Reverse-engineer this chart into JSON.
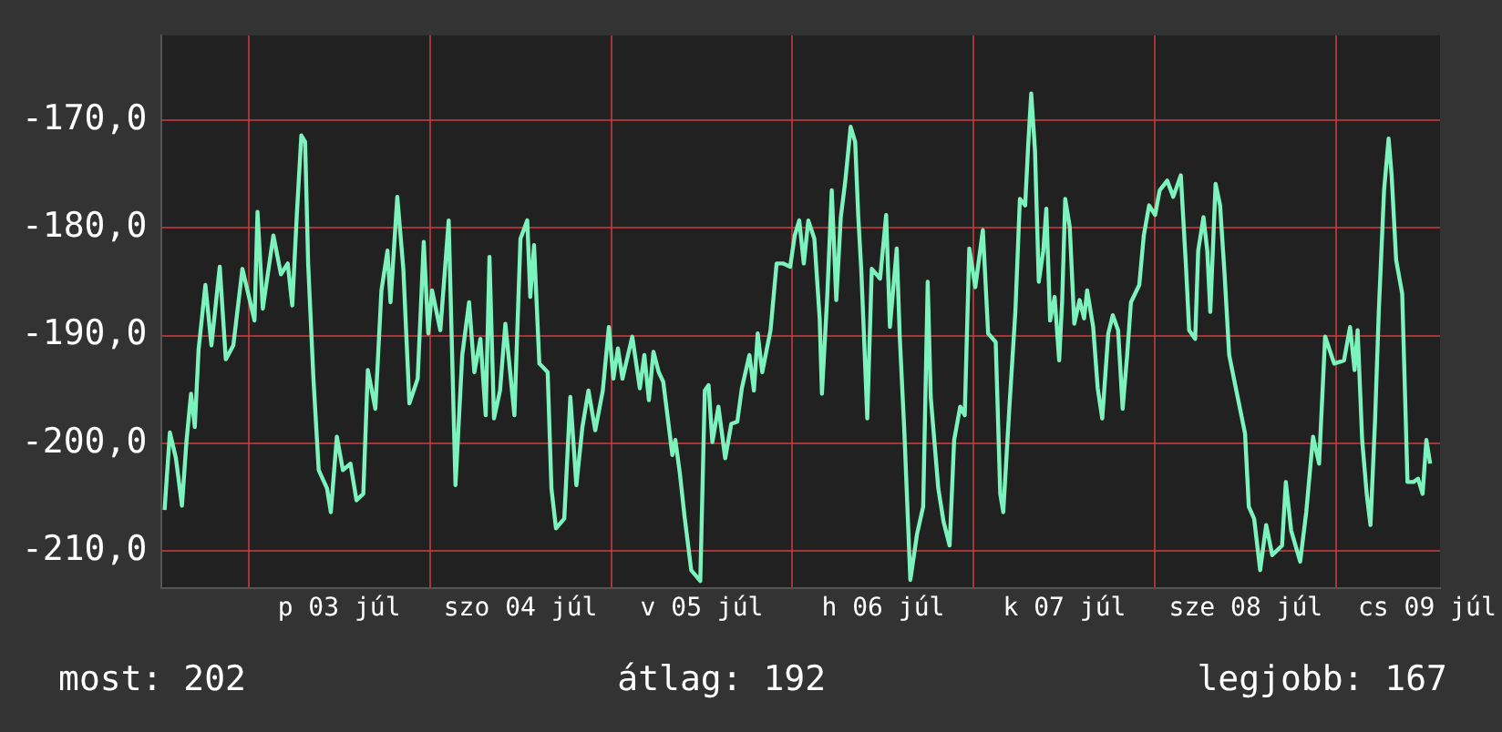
{
  "chart_data": {
    "type": "line",
    "x": [
      "--07-02T12:54",
      "--07-02T13:36",
      "--07-02T14:24",
      "--07-02T15:12",
      "--07-02T15:48",
      "--07-02T16:24",
      "--07-02T16:54",
      "--07-02T17:24",
      "--07-02T18:18",
      "--07-02T19:06",
      "--07-02T20:12",
      "--07-02T21:00",
      "--07-02T22:00",
      "--07-02T23:12",
      "--07-03T00:48",
      "--07-03T01:12",
      "--07-03T01:54",
      "--07-03T03:18",
      "--07-03T04:18",
      "--07-03T05:12",
      "--07-03T05:48",
      "--07-03T06:24",
      "--07-03T07:00",
      "--07-03T07:30",
      "--07-03T07:54",
      "--07-03T08:36",
      "--07-03T09:18",
      "--07-03T10:24",
      "--07-03T10:54",
      "--07-03T11:42",
      "--07-03T12:30",
      "--07-03T13:30",
      "--07-03T14:18",
      "--07-03T15:12",
      "--07-03T15:48",
      "--07-03T16:48",
      "--07-03T17:36",
      "--07-03T18:24",
      "--07-03T18:48",
      "--07-03T19:42",
      "--07-03T20:30",
      "--07-03T21:18",
      "--07-03T22:24",
      "--07-03T23:12",
      "--07-03T23:48",
      "--07-04T00:18",
      "--07-04T01:24",
      "--07-04T02:30",
      "--07-04T03:24",
      "--07-04T04:18",
      "--07-04T05:12",
      "--07-04T05:54",
      "--07-04T06:42",
      "--07-04T07:24",
      "--07-04T07:54",
      "--07-04T08:30",
      "--07-04T09:18",
      "--07-04T10:00",
      "--07-04T11:12",
      "--07-04T12:00",
      "--07-04T12:54",
      "--07-04T13:18",
      "--07-04T13:48",
      "--07-04T14:30",
      "--07-04T15:36",
      "--07-04T16:06",
      "--07-04T16:42",
      "--07-04T17:48",
      "--07-04T18:36",
      "--07-04T19:24",
      "--07-04T20:12",
      "--07-04T21:00",
      "--07-04T21:54",
      "--07-04T22:54",
      "--07-04T23:42",
      "--07-05T00:18",
      "--07-05T00:54",
      "--07-05T01:30",
      "--07-05T02:48",
      "--07-05T03:48",
      "--07-05T04:24",
      "--07-05T05:00",
      "--07-05T05:36",
      "--07-05T06:18",
      "--07-05T06:54",
      "--07-05T07:42",
      "--07-05T08:06",
      "--07-05T08:30",
      "--07-05T09:06",
      "--07-05T09:42",
      "--07-05T10:36",
      "--07-05T11:48",
      "--07-05T12:24",
      "--07-05T12:54",
      "--07-05T13:24",
      "--07-05T14:12",
      "--07-05T15:06",
      "--07-05T15:54",
      "--07-05T16:42",
      "--07-05T17:18",
      "--07-05T18:18",
      "--07-05T18:54",
      "--07-05T19:24",
      "--07-05T20:00",
      "--07-05T21:06",
      "--07-05T21:54",
      "--07-05T22:48",
      "--07-05T23:42",
      "--07-06T00:18",
      "--07-06T00:54",
      "--07-06T01:30",
      "--07-06T02:06",
      "--07-06T02:54",
      "--07-06T03:36",
      "--07-06T03:54",
      "--07-06T04:36",
      "--07-06T05:12",
      "--07-06T05:48",
      "--07-06T06:24",
      "--07-06T07:00",
      "--07-06T07:42",
      "--07-06T08:18",
      "--07-06T08:42",
      "--07-06T09:06",
      "--07-06T09:30",
      "--07-06T09:54",
      "--07-06T10:30",
      "--07-06T11:36",
      "--07-06T12:24",
      "--07-06T12:54",
      "--07-06T13:48",
      "--07-06T14:12",
      "--07-06T14:48",
      "--07-06T15:36",
      "--07-06T16:30",
      "--07-06T17:18",
      "--07-06T17:54",
      "--07-06T18:18",
      "--07-06T19:18",
      "--07-06T20:00",
      "--07-06T20:48",
      "--07-06T21:24",
      "--07-06T22:12",
      "--07-06T22:48",
      "--07-06T23:24",
      "--07-07T00:12",
      "--07-07T01:12",
      "--07-07T01:54",
      "--07-07T02:54",
      "--07-07T03:30",
      "--07-07T03:54",
      "--07-07T04:42",
      "--07-07T05:30",
      "--07-07T06:06",
      "--07-07T06:48",
      "--07-07T07:12",
      "--07-07T07:36",
      "--07-07T08:06",
      "--07-07T08:36",
      "--07-07T09:12",
      "--07-07T09:36",
      "--07-07T10:06",
      "--07-07T10:42",
      "--07-07T11:18",
      "--07-07T11:42",
      "--07-07T12:06",
      "--07-07T12:42",
      "--07-07T13:18",
      "--07-07T14:00",
      "--07-07T14:36",
      "--07-07T15:00",
      "--07-07T15:48",
      "--07-07T16:24",
      "--07-07T17:00",
      "--07-07T17:48",
      "--07-07T18:24",
      "--07-07T19:06",
      "--07-07T19:42",
      "--07-07T20:18",
      "--07-07T20:48",
      "--07-07T21:54",
      "--07-07T22:30",
      "--07-07T23:12",
      "--07-08T00:00",
      "--07-08T00:36",
      "--07-08T01:36",
      "--07-08T02:24",
      "--07-08T03:24",
      "--07-08T04:06",
      "--07-08T04:30",
      "--07-08T05:18",
      "--07-08T05:42",
      "--07-08T06:24",
      "--07-08T06:54",
      "--07-08T07:18",
      "--07-08T08:00",
      "--07-08T08:36",
      "--07-08T09:12",
      "--07-08T09:48",
      "--07-08T10:36",
      "--07-08T11:54",
      "--07-08T12:24",
      "--07-08T13:06",
      "--07-08T13:54",
      "--07-08T14:42",
      "--07-08T15:30",
      "--07-08T16:48",
      "--07-08T17:18",
      "--07-08T18:00",
      "--07-08T19:12",
      "--07-08T20:00",
      "--07-08T20:54",
      "--07-08T21:42",
      "--07-08T22:30",
      "--07-08T23:42",
      "--07-09T01:00",
      "--07-09T01:48",
      "--07-09T02:24",
      "--07-09T02:48",
      "--07-09T03:24",
      "--07-09T04:00",
      "--07-09T04:30",
      "--07-09T05:06",
      "--07-09T05:36",
      "--07-09T06:18",
      "--07-09T06:54",
      "--07-09T07:18",
      "--07-09T07:54",
      "--07-09T08:42",
      "--07-09T09:24",
      "--07-09T10:12",
      "--07-09T10:48",
      "--07-09T11:24",
      "--07-09T11:54",
      "--07-09T12:24"
    ],
    "series": [
      {
        "color": "#7cf3bd",
        "values": [
          -206.2,
          -199.0,
          -201.4,
          -205.8,
          -199.8,
          -195.4,
          -198.5,
          -191.3,
          -185.3,
          -190.9,
          -183.6,
          -192.2,
          -190.9,
          -183.8,
          -188.6,
          -178.5,
          -187.5,
          -180.7,
          -184.3,
          -183.3,
          -187.2,
          -178.8,
          -171.4,
          -172.0,
          -183.3,
          -194.0,
          -202.5,
          -204.2,
          -206.4,
          -199.4,
          -202.5,
          -201.9,
          -205.3,
          -204.7,
          -193.2,
          -196.8,
          -185.8,
          -182.1,
          -186.9,
          -177.1,
          -183.8,
          -196.3,
          -194.0,
          -181.3,
          -189.8,
          -185.8,
          -189.5,
          -179.3,
          -203.9,
          -191.8,
          -186.9,
          -193.4,
          -190.3,
          -197.4,
          -182.7,
          -197.7,
          -195.1,
          -188.9,
          -197.4,
          -181.0,
          -179.3,
          -186.4,
          -181.6,
          -192.6,
          -193.4,
          -204.2,
          -207.9,
          -207.0,
          -195.7,
          -203.9,
          -198.5,
          -195.1,
          -198.8,
          -195.1,
          -189.2,
          -194.0,
          -191.2,
          -194.0,
          -190.1,
          -194.9,
          -191.8,
          -196.0,
          -191.5,
          -193.4,
          -194.3,
          -198.8,
          -201.1,
          -199.7,
          -202.8,
          -206.7,
          -211.8,
          -212.8,
          -195.1,
          -194.6,
          -199.9,
          -196.6,
          -201.4,
          -198.2,
          -198.0,
          -194.9,
          -191.8,
          -195.1,
          -189.8,
          -193.4,
          -189.5,
          -183.3,
          -183.3,
          -183.6,
          -180.7,
          -179.3,
          -183.3,
          -179.3,
          -181.0,
          -188.4,
          -195.4,
          -186.4,
          -176.5,
          -186.7,
          -179.0,
          -175.6,
          -170.6,
          -172.0,
          -178.8,
          -183.8,
          -190.6,
          -197.7,
          -183.8,
          -184.7,
          -178.8,
          -189.2,
          -181.9,
          -190.1,
          -198.8,
          -212.7,
          -208.4,
          -205.9,
          -185.0,
          -195.7,
          -204.2,
          -207.3,
          -209.5,
          -199.7,
          -196.6,
          -197.4,
          -181.9,
          -185.5,
          -180.2,
          -189.8,
          -190.6,
          -204.7,
          -206.4,
          -196.8,
          -187.8,
          -177.3,
          -177.9,
          -172.3,
          -167.5,
          -172.8,
          -185.0,
          -182.1,
          -178.2,
          -188.6,
          -186.4,
          -192.3,
          -186.7,
          -177.3,
          -179.9,
          -188.9,
          -186.7,
          -188.4,
          -185.8,
          -189.2,
          -194.9,
          -197.7,
          -189.8,
          -188.1,
          -189.5,
          -196.8,
          -191.8,
          -186.9,
          -185.3,
          -180.7,
          -177.9,
          -178.8,
          -176.5,
          -175.6,
          -177.1,
          -175.1,
          -183.8,
          -189.5,
          -190.3,
          -182.1,
          -179.0,
          -182.1,
          -187.8,
          -175.9,
          -177.9,
          -184.4,
          -191.8,
          -194.6,
          -199.1,
          -205.9,
          -207.0,
          -211.8,
          -207.6,
          -210.4,
          -209.5,
          -203.6,
          -208.1,
          -211.0,
          -206.4,
          -199.4,
          -201.9,
          -190.1,
          -192.6,
          -192.3,
          -189.2,
          -193.2,
          -189.5,
          -199.7,
          -204.7,
          -207.6,
          -198.0,
          -187.8,
          -176.5,
          -171.7,
          -175.1,
          -183.0,
          -186.1,
          -203.6,
          -203.6,
          -203.3,
          -204.7,
          -199.7,
          -201.9
        ]
      }
    ],
    "xlim": [
      "--07-02T12:30",
      "--07-09T13:42"
    ],
    "xticks": [
      {
        "value": "--07-03",
        "label": null
      },
      {
        "value": "--07-03T12:00",
        "label": "p 03 júl"
      },
      {
        "value": "--07-04",
        "label": null
      },
      {
        "value": "--07-04T12:00",
        "label": "szo 04 júl"
      },
      {
        "value": "--07-05",
        "label": null
      },
      {
        "value": "--07-05T12:00",
        "label": "v 05 júl"
      },
      {
        "value": "--07-06",
        "label": null
      },
      {
        "value": "--07-06T12:00",
        "label": "h 06 júl"
      },
      {
        "value": "--07-07",
        "label": null
      },
      {
        "value": "--07-07T12:00",
        "label": "k 07 júl"
      },
      {
        "value": "--07-08",
        "label": null
      },
      {
        "value": "--07-08T12:00",
        "label": "sze 08 júl"
      },
      {
        "value": "--07-09",
        "label": null
      },
      {
        "value": "--07-09T12:00",
        "label": "cs 09 júl"
      }
    ],
    "ylim": [
      -213.5,
      -162.1
    ],
    "yticks": [
      {
        "value": -210,
        "label": "-210,0"
      },
      {
        "value": -200,
        "label": "-200,0"
      },
      {
        "value": -190,
        "label": "-190,0"
      },
      {
        "value": -180,
        "label": "-180,0"
      },
      {
        "value": -170,
        "label": "-170,0"
      }
    ],
    "grid": true,
    "legend": false,
    "marker": "none",
    "line_style": "solid",
    "annotations": [
      "most: 202",
      "átlag: 192",
      "legjobb: 167"
    ]
  }
}
